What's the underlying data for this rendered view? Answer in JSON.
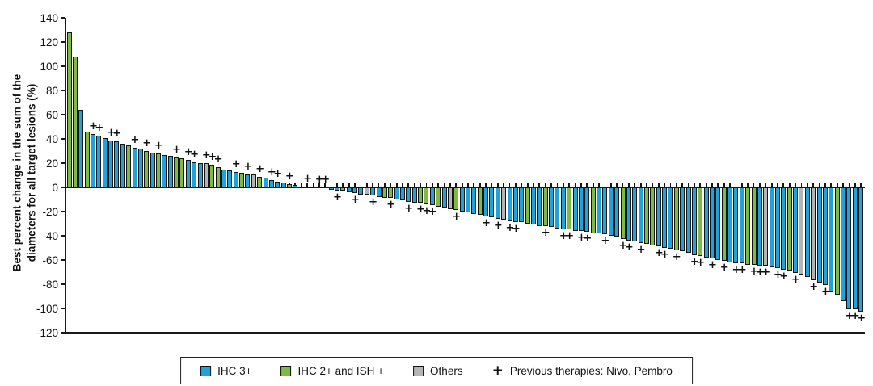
{
  "chart_data": {
    "type": "bar",
    "subtype": "waterfall",
    "title": "",
    "ylabel": "Best percent change in the sum of the\ndiameters for all target lesions (%)",
    "ylim": [
      -120,
      140
    ],
    "ytick_interval": 20,
    "yticks": [
      "140",
      "120",
      "100",
      "80",
      "60",
      "40",
      "20",
      "0",
      "-20",
      "-40",
      "-60",
      "-80",
      "-100",
      "-120"
    ],
    "grid": false,
    "legend_position": "bottom",
    "colors": {
      "B": "#1EA3DC",
      "G": "#7DBB42",
      "O": "#B5B5B5",
      "outline": "#151515"
    },
    "color_meaning": {
      "B": "IHC 3+",
      "G": "IHC 2+ and ISH +",
      "O": "Others"
    },
    "marker_meaning": "Previous therapies: Nivo, Pembro",
    "bars": [
      [
        128,
        "G",
        0
      ],
      [
        108,
        "G",
        0
      ],
      [
        64,
        "B",
        0
      ],
      [
        46,
        "G",
        0
      ],
      [
        44,
        "B",
        1
      ],
      [
        43,
        "B",
        1
      ],
      [
        41,
        "B",
        0
      ],
      [
        39,
        "B",
        1
      ],
      [
        38,
        "B",
        1
      ],
      [
        36,
        "B",
        0
      ],
      [
        35,
        "G",
        0
      ],
      [
        33,
        "B",
        1
      ],
      [
        32,
        "B",
        0
      ],
      [
        30,
        "G",
        1
      ],
      [
        29,
        "B",
        0
      ],
      [
        28,
        "G",
        1
      ],
      [
        27,
        "B",
        0
      ],
      [
        26,
        "B",
        0
      ],
      [
        25,
        "G",
        1
      ],
      [
        24,
        "G",
        0
      ],
      [
        23,
        "B",
        1
      ],
      [
        21,
        "B",
        1
      ],
      [
        20,
        "B",
        0
      ],
      [
        20,
        "O",
        1
      ],
      [
        19,
        "G",
        1
      ],
      [
        17,
        "G",
        1
      ],
      [
        15,
        "B",
        0
      ],
      [
        14,
        "B",
        0
      ],
      [
        13,
        "B",
        1
      ],
      [
        12,
        "G",
        0
      ],
      [
        11,
        "B",
        1
      ],
      [
        11,
        "O",
        0
      ],
      [
        9,
        "G",
        1
      ],
      [
        8,
        "B",
        0
      ],
      [
        6,
        "B",
        1
      ],
      [
        5,
        "B",
        1
      ],
      [
        4,
        "B",
        0
      ],
      [
        3,
        "G",
        1
      ],
      [
        2,
        "B",
        0
      ],
      [
        1,
        "B",
        0
      ],
      [
        1,
        "G",
        1
      ],
      [
        0,
        "B",
        0
      ],
      [
        0,
        "B",
        1
      ],
      [
        0,
        "B",
        1
      ],
      [
        -1,
        "B",
        0
      ],
      [
        -2,
        "B",
        1
      ],
      [
        -2,
        "G",
        0
      ],
      [
        -3,
        "B",
        0
      ],
      [
        -4,
        "B",
        1
      ],
      [
        -5,
        "B",
        0
      ],
      [
        -5,
        "O",
        0
      ],
      [
        -6,
        "B",
        1
      ],
      [
        -7,
        "B",
        0
      ],
      [
        -8,
        "G",
        0
      ],
      [
        -8,
        "G",
        1
      ],
      [
        -9,
        "B",
        0
      ],
      [
        -10,
        "B",
        0
      ],
      [
        -11,
        "B",
        1
      ],
      [
        -12,
        "B",
        0
      ],
      [
        -12,
        "G",
        1
      ],
      [
        -13,
        "G",
        1
      ],
      [
        -14,
        "B",
        1
      ],
      [
        -15,
        "G",
        0
      ],
      [
        -16,
        "B",
        0
      ],
      [
        -17,
        "O",
        0
      ],
      [
        -18,
        "G",
        1
      ],
      [
        -19,
        "B",
        0
      ],
      [
        -20,
        "B",
        0
      ],
      [
        -21,
        "B",
        0
      ],
      [
        -22,
        "G",
        0
      ],
      [
        -23,
        "B",
        1
      ],
      [
        -24,
        "B",
        0
      ],
      [
        -25,
        "B",
        1
      ],
      [
        -26,
        "O",
        0
      ],
      [
        -27,
        "B",
        1
      ],
      [
        -28,
        "B",
        1
      ],
      [
        -28,
        "B",
        0
      ],
      [
        -29,
        "G",
        0
      ],
      [
        -30,
        "B",
        0
      ],
      [
        -31,
        "B",
        0
      ],
      [
        -31,
        "G",
        1
      ],
      [
        -32,
        "B",
        0
      ],
      [
        -33,
        "B",
        0
      ],
      [
        -34,
        "B",
        1
      ],
      [
        -34,
        "G",
        1
      ],
      [
        -35,
        "B",
        0
      ],
      [
        -35,
        "B",
        1
      ],
      [
        -36,
        "B",
        1
      ],
      [
        -37,
        "G",
        0
      ],
      [
        -37,
        "B",
        0
      ],
      [
        -38,
        "B",
        1
      ],
      [
        -39,
        "B",
        0
      ],
      [
        -40,
        "B",
        0
      ],
      [
        -42,
        "G",
        1
      ],
      [
        -43,
        "B",
        1
      ],
      [
        -44,
        "B",
        0
      ],
      [
        -45,
        "B",
        1
      ],
      [
        -46,
        "G",
        0
      ],
      [
        -47,
        "G",
        0
      ],
      [
        -48,
        "B",
        1
      ],
      [
        -49,
        "B",
        1
      ],
      [
        -50,
        "B",
        0
      ],
      [
        -51,
        "G",
        1
      ],
      [
        -52,
        "B",
        0
      ],
      [
        -53,
        "B",
        0
      ],
      [
        -55,
        "B",
        1
      ],
      [
        -56,
        "G",
        1
      ],
      [
        -57,
        "B",
        0
      ],
      [
        -58,
        "B",
        1
      ],
      [
        -59,
        "B",
        0
      ],
      [
        -60,
        "G",
        1
      ],
      [
        -61,
        "B",
        0
      ],
      [
        -62,
        "B",
        1
      ],
      [
        -62,
        "B",
        1
      ],
      [
        -63,
        "G",
        0
      ],
      [
        -63,
        "G",
        1
      ],
      [
        -64,
        "B",
        1
      ],
      [
        -64,
        "O",
        1
      ],
      [
        -65,
        "B",
        0
      ],
      [
        -66,
        "B",
        1
      ],
      [
        -67,
        "B",
        1
      ],
      [
        -68,
        "G",
        0
      ],
      [
        -70,
        "B",
        1
      ],
      [
        -71,
        "O",
        0
      ],
      [
        -73,
        "B",
        0
      ],
      [
        -76,
        "O",
        1
      ],
      [
        -78,
        "B",
        0
      ],
      [
        -80,
        "B",
        1
      ],
      [
        -85,
        "B",
        0
      ],
      [
        -88,
        "G",
        0
      ],
      [
        -93,
        "B",
        0
      ],
      [
        -100,
        "B",
        1
      ],
      [
        -100,
        "B",
        1
      ],
      [
        -102,
        "B",
        1
      ]
    ]
  },
  "legend": {
    "items": [
      {
        "type": "swatch",
        "label": "IHC 3+",
        "color": "#1EA3DC"
      },
      {
        "type": "swatch",
        "label": "IHC 2+ and ISH +",
        "color": "#7DBB42"
      },
      {
        "type": "swatch",
        "label": "Others",
        "color": "#B5B5B5"
      },
      {
        "type": "marker",
        "symbol": "+",
        "label": "Previous therapies: Nivo, Pembro"
      }
    ]
  }
}
